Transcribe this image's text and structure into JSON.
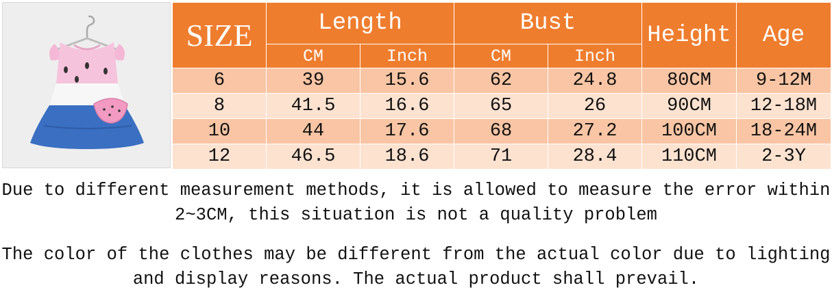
{
  "table": {
    "size_header": "SIZE",
    "groups": [
      {
        "label": "Length",
        "units": [
          "CM",
          "Inch"
        ]
      },
      {
        "label": "Bust",
        "units": [
          "CM",
          "Inch"
        ]
      }
    ],
    "height_header": "Height",
    "age_header": "Age",
    "rows": [
      {
        "size": "6",
        "length_cm": "39",
        "length_inch": "15.6",
        "bust_cm": "62",
        "bust_inch": "24.8",
        "height": "80CM",
        "age": "9-12M"
      },
      {
        "size": "8",
        "length_cm": "41.5",
        "length_inch": "16.6",
        "bust_cm": "65",
        "bust_inch": "26",
        "height": "90CM",
        "age": "12-18M"
      },
      {
        "size": "10",
        "length_cm": "44",
        "length_inch": "17.6",
        "bust_cm": "68",
        "bust_inch": "27.2",
        "height": "100CM",
        "age": "18-24M"
      },
      {
        "size": "12",
        "length_cm": "46.5",
        "length_inch": "18.6",
        "bust_cm": "71",
        "bust_inch": "28.4",
        "height": "110CM",
        "age": "2-3Y"
      }
    ]
  },
  "notes": {
    "measurement": [
      "Due to different measurement methods, it is allowed to measure the error within",
      "2~3CM, this situation is not a quality problem"
    ],
    "color": [
      "The color of the clothes may be different from the actual color due to lighting",
      "and display reasons. The actual product shall prevail."
    ]
  },
  "colors": {
    "header_orange": "#ef7d2e",
    "row_dark": "#f9c5a4",
    "row_light": "#fde2d0"
  }
}
